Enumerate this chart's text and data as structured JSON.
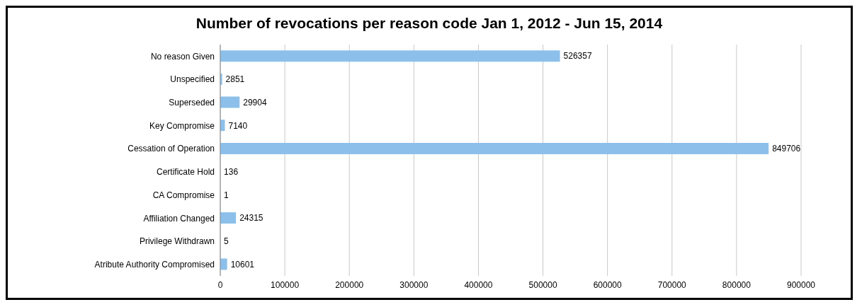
{
  "chart_data": {
    "type": "bar",
    "orientation": "horizontal",
    "title": "Number of revocations per reason code  Jan 1, 2012 - Jun 15, 2014",
    "categories": [
      "No reason Given",
      "Unspecified",
      "Superseded",
      "Key Compromise",
      "Cessation of Operation",
      "Certificate Hold",
      "CA Compromise",
      "Affiliation Changed",
      "Privilege Withdrawn",
      "Atribute Authority Compromised"
    ],
    "values": [
      526357,
      2851,
      29904,
      7140,
      849706,
      136,
      1,
      24315,
      5,
      10601
    ],
    "color": "#8cc0ea",
    "xlim": [
      0,
      900000
    ],
    "xticks": [
      0,
      100000,
      200000,
      300000,
      400000,
      500000,
      600000,
      700000,
      800000,
      900000
    ],
    "grid": "x",
    "data_labels": true
  }
}
